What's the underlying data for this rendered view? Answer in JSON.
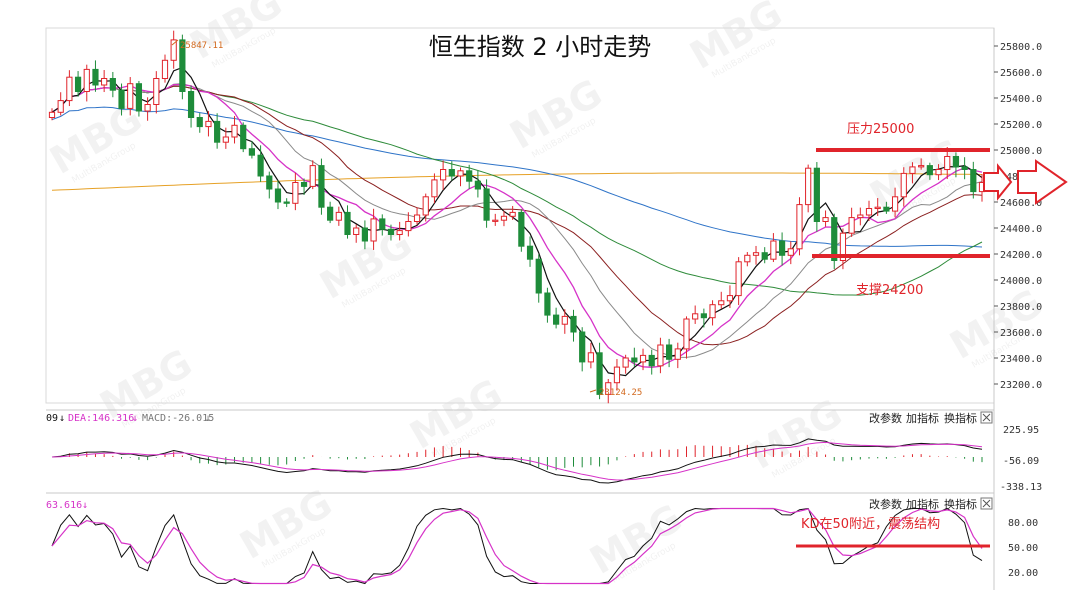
{
  "title": "恒生指数 2 小时走势",
  "colors": {
    "up": "#e0242b",
    "down": "#1e8c3a",
    "ma5": "#111111",
    "ma10": "#d633c8",
    "ma20": "#8a8a8a",
    "ma30": "#8b2020",
    "ma60": "#2e8b3a",
    "ma120": "#2f74c8",
    "ma250": "#e6a126",
    "annotation": "#e0242b",
    "macd_dif": "#111111",
    "macd_dea": "#d633c8"
  },
  "annotations": {
    "resistance": "压力25000",
    "support": "支撑24200",
    "kd_note": "KD在50附近，震荡结构",
    "high_label": "25847.11",
    "low_label": "23124.25"
  },
  "macd_panel": {
    "header_prefix": "09",
    "dea_label": "DEA:146.316",
    "macd_label": "MACD:-26.015",
    "buttons": [
      "改参数",
      "加指标",
      "换指标"
    ],
    "close_icon": "close-icon",
    "ticks": [
      "225.95",
      "-56.09",
      "-338.13"
    ]
  },
  "kd_panel": {
    "header_value": "63.616",
    "buttons": [
      "改参数",
      "加指标",
      "换指标"
    ],
    "close_icon": "close-icon",
    "ticks": [
      "80.00",
      "50.00",
      "20.00"
    ]
  },
  "watermark": {
    "text": "MBG",
    "sub": "MultiBankGroup"
  },
  "chart_data": {
    "type": "candlestick",
    "title": "恒生指数 2 小时走势",
    "ylim": [
      23000,
      25900
    ],
    "yticks": [
      23200,
      23400,
      23600,
      23800,
      24000,
      24200,
      24400,
      24600,
      24800,
      25000,
      25200,
      25400,
      25600,
      25800
    ],
    "ytick_labels": [
      "23200.0",
      "23400.0",
      "23600.0",
      "23800.0",
      "24000.0",
      "24200.0",
      "24400.0",
      "24600.0",
      "24800.0",
      "25000.0",
      "25200.0",
      "25400.0",
      "25600.0",
      "25800.0"
    ],
    "closes": [
      25290,
      25380,
      25560,
      25450,
      25620,
      25500,
      25550,
      25460,
      25320,
      25510,
      25300,
      25350,
      25550,
      25690,
      25847,
      25450,
      25250,
      25180,
      25220,
      25060,
      25100,
      25190,
      25010,
      24960,
      24800,
      24700,
      24600,
      24590,
      24750,
      24720,
      24880,
      24560,
      24460,
      24520,
      24350,
      24400,
      24300,
      24470,
      24390,
      24350,
      24380,
      24450,
      24500,
      24640,
      24770,
      24850,
      24800,
      24840,
      24760,
      24700,
      24460,
      24460,
      24490,
      24520,
      24260,
      24160,
      23900,
      23730,
      23660,
      23720,
      23600,
      23370,
      23440,
      23120,
      23210,
      23330,
      23400,
      23370,
      23420,
      23340,
      23500,
      23390,
      23470,
      23700,
      23740,
      23710,
      23810,
      23840,
      23880,
      24140,
      24190,
      24210,
      24160,
      24300,
      24190,
      24240,
      24580,
      24860,
      24450,
      24480,
      24150,
      24360,
      24480,
      24500,
      24550,
      24560,
      24530,
      24640,
      24820,
      24870,
      24880,
      24810,
      24850,
      24950,
      24870,
      24850,
      24680,
      24750
    ],
    "annotations": [
      {
        "text": "压力25000",
        "y": 25000
      },
      {
        "text": "支撑24200",
        "y": 24200
      },
      {
        "text": "25847.11",
        "y": 25847.11
      },
      {
        "text": "23124.25",
        "y": 23124.25
      }
    ],
    "indicators": {
      "macd": {
        "DEA": 146.316,
        "MACD": -26.015,
        "yticks": [
          225.95,
          -56.09,
          -338.13
        ]
      },
      "kd": {
        "value": 63.616,
        "yticks": [
          80,
          50,
          20
        ],
        "reference_line": 50
      }
    }
  }
}
